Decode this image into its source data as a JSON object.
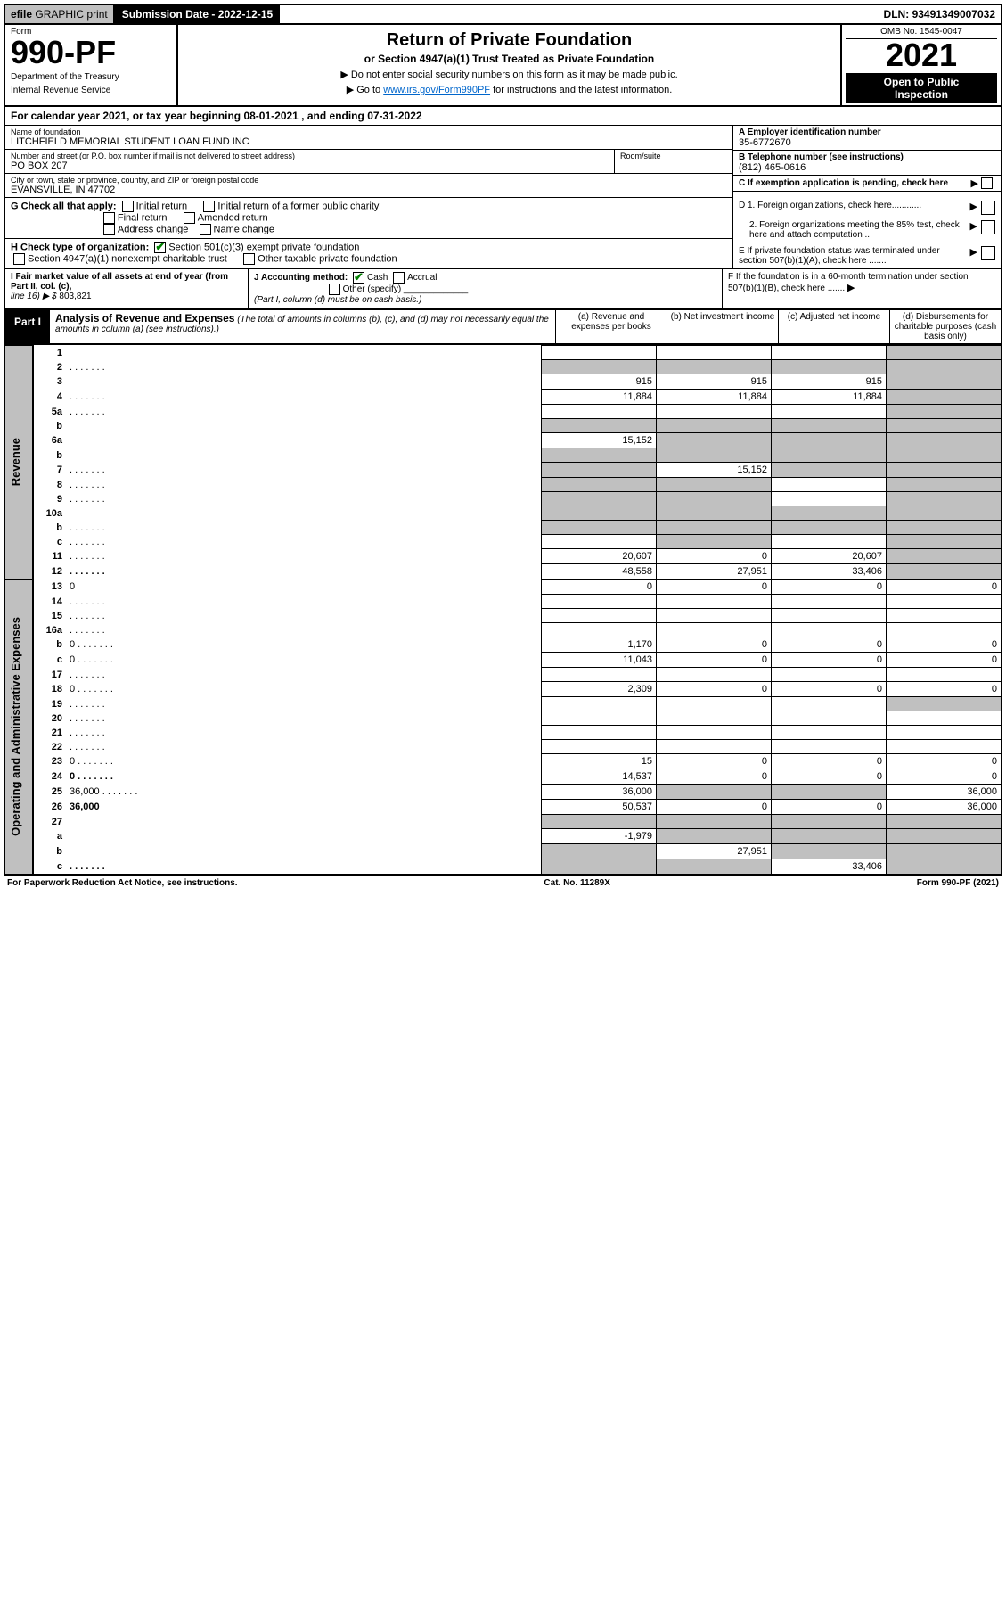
{
  "top": {
    "efile": "efile",
    "graphic": "GRAPHIC",
    "print": "print",
    "sub_label": "Submission Date",
    "sub_date": "2022-12-15",
    "dln_label": "DLN:",
    "dln": "93491349007032"
  },
  "header": {
    "form_label": "Form",
    "form_number": "990-PF",
    "dept1": "Department of the Treasury",
    "dept2": "Internal Revenue Service",
    "title": "Return of Private Foundation",
    "subtitle": "or Section 4947(a)(1) Trust Treated as Private Foundation",
    "instr1": "▶ Do not enter social security numbers on this form as it may be made public.",
    "instr2_pre": "▶ Go to ",
    "instr2_link": "www.irs.gov/Form990PF",
    "instr2_post": " for instructions and the latest information.",
    "omb": "OMB No. 1545-0047",
    "year": "2021",
    "open1": "Open to Public",
    "open2": "Inspection"
  },
  "calendar": {
    "pre": "For calendar year 2021, or tax year beginning ",
    "begin": "08-01-2021",
    "mid": " , and ending ",
    "end": "07-31-2022"
  },
  "org": {
    "name_label": "Name of foundation",
    "name": "LITCHFIELD MEMORIAL STUDENT LOAN FUND INC",
    "addr_label": "Number and street (or P.O. box number if mail is not delivered to street address)",
    "addr": "PO BOX 207",
    "room_label": "Room/suite",
    "city_label": "City or town, state or province, country, and ZIP or foreign postal code",
    "city": "EVANSVILLE, IN  47702",
    "ein_label": "A Employer identification number",
    "ein": "35-6772670",
    "tel_label": "B Telephone number (see instructions)",
    "tel": "(812) 465-0616",
    "c_label": "C If exemption application is pending, check here"
  },
  "checks": {
    "g_label": "G Check all that apply:",
    "g1": "Initial return",
    "g2": "Initial return of a former public charity",
    "g3": "Final return",
    "g4": "Amended return",
    "g5": "Address change",
    "g6": "Name change",
    "h_label": "H Check type of organization:",
    "h1": "Section 501(c)(3) exempt private foundation",
    "h2": "Section 4947(a)(1) nonexempt charitable trust",
    "h3": "Other taxable private foundation",
    "d1": "D 1. Foreign organizations, check here............",
    "d2": "2. Foreign organizations meeting the 85% test, check here and attach computation ...",
    "e": "E If private foundation status was terminated under section 507(b)(1)(A), check here .......",
    "f": "F If the foundation is in a 60-month termination under section 507(b)(1)(B), check here .......",
    "i_label": "I Fair market value of all assets at end of year (from Part II, col. (c),",
    "i_line": "line 16) ▶ $",
    "i_val": "803,821",
    "j_label": "J Accounting method:",
    "j1": "Cash",
    "j2": "Accrual",
    "j3": "Other (specify)",
    "j_note": "(Part I, column (d) must be on cash basis.)"
  },
  "part1": {
    "label": "Part I",
    "title": "Analysis of Revenue and Expenses",
    "title_note": "(The total of amounts in columns (b), (c), and (d) may not necessarily equal the amounts in column (a) (see instructions).)",
    "col_a": "(a) Revenue and expenses per books",
    "col_b": "(b) Net investment income",
    "col_c": "(c) Adjusted net income",
    "col_d": "(d) Disbursements for charitable purposes (cash basis only)"
  },
  "sides": {
    "revenue": "Revenue",
    "expenses": "Operating and Administrative Expenses"
  },
  "rows": [
    {
      "n": "1",
      "d": "",
      "a": "",
      "b": "",
      "c": "",
      "dgrey": true
    },
    {
      "n": "2",
      "d": "",
      "dots": true,
      "a": "",
      "b": "",
      "c": "",
      "bgrey": true,
      "cgrey": true,
      "dgrey": true,
      "agrey": true
    },
    {
      "n": "3",
      "d": "",
      "a": "915",
      "b": "915",
      "c": "915",
      "dgrey": true
    },
    {
      "n": "4",
      "d": "",
      "dots": true,
      "a": "11,884",
      "b": "11,884",
      "c": "11,884",
      "dgrey": true
    },
    {
      "n": "5a",
      "d": "",
      "dots": true,
      "a": "",
      "b": "",
      "c": "",
      "dgrey": true
    },
    {
      "n": "b",
      "d": "",
      "a": "",
      "b": "",
      "c": "",
      "agrey": true,
      "bgrey": true,
      "cgrey": true,
      "dgrey": true
    },
    {
      "n": "6a",
      "d": "",
      "a": "15,152",
      "b": "",
      "c": "",
      "bgrey": true,
      "cgrey": true,
      "dgrey": true
    },
    {
      "n": "b",
      "d": "",
      "a": "",
      "b": "",
      "c": "",
      "agrey": true,
      "bgrey": true,
      "cgrey": true,
      "dgrey": true
    },
    {
      "n": "7",
      "d": "",
      "dots": true,
      "a": "",
      "b": "15,152",
      "c": "",
      "agrey": true,
      "cgrey": true,
      "dgrey": true
    },
    {
      "n": "8",
      "d": "",
      "dots": true,
      "a": "",
      "b": "",
      "c": "",
      "agrey": true,
      "bgrey": true,
      "dgrey": true
    },
    {
      "n": "9",
      "d": "",
      "dots": true,
      "a": "",
      "b": "",
      "c": "",
      "agrey": true,
      "bgrey": true,
      "dgrey": true
    },
    {
      "n": "10a",
      "d": "",
      "a": "",
      "b": "",
      "c": "",
      "agrey": true,
      "bgrey": true,
      "cgrey": true,
      "dgrey": true
    },
    {
      "n": "b",
      "d": "",
      "dots": true,
      "a": "",
      "b": "",
      "c": "",
      "agrey": true,
      "bgrey": true,
      "cgrey": true,
      "dgrey": true
    },
    {
      "n": "c",
      "d": "",
      "dots": true,
      "a": "",
      "b": "",
      "c": "",
      "bgrey": true,
      "dgrey": true
    },
    {
      "n": "11",
      "d": "",
      "dots": true,
      "a": "20,607",
      "b": "0",
      "c": "20,607",
      "dgrey": true
    },
    {
      "n": "12",
      "d": "",
      "dots": true,
      "bold": true,
      "a": "48,558",
      "b": "27,951",
      "c": "33,406",
      "dgrey": true
    },
    {
      "n": "13",
      "d": "0",
      "a": "0",
      "b": "0",
      "c": "0"
    },
    {
      "n": "14",
      "d": "",
      "dots": true,
      "a": "",
      "b": "",
      "c": ""
    },
    {
      "n": "15",
      "d": "",
      "dots": true,
      "a": "",
      "b": "",
      "c": ""
    },
    {
      "n": "16a",
      "d": "",
      "dots": true,
      "a": "",
      "b": "",
      "c": ""
    },
    {
      "n": "b",
      "d": "0",
      "dots": true,
      "a": "1,170",
      "b": "0",
      "c": "0"
    },
    {
      "n": "c",
      "d": "0",
      "dots": true,
      "a": "11,043",
      "b": "0",
      "c": "0"
    },
    {
      "n": "17",
      "d": "",
      "dots": true,
      "a": "",
      "b": "",
      "c": ""
    },
    {
      "n": "18",
      "d": "0",
      "dots": true,
      "a": "2,309",
      "b": "0",
      "c": "0"
    },
    {
      "n": "19",
      "d": "",
      "dots": true,
      "a": "",
      "b": "",
      "c": "",
      "dgrey": true
    },
    {
      "n": "20",
      "d": "",
      "dots": true,
      "a": "",
      "b": "",
      "c": ""
    },
    {
      "n": "21",
      "d": "",
      "dots": true,
      "a": "",
      "b": "",
      "c": ""
    },
    {
      "n": "22",
      "d": "",
      "dots": true,
      "a": "",
      "b": "",
      "c": ""
    },
    {
      "n": "23",
      "d": "0",
      "dots": true,
      "a": "15",
      "b": "0",
      "c": "0"
    },
    {
      "n": "24",
      "d": "0",
      "dots": true,
      "bold": true,
      "a": "14,537",
      "b": "0",
      "c": "0"
    },
    {
      "n": "25",
      "d": "36,000",
      "dots": true,
      "a": "36,000",
      "b": "",
      "c": "",
      "bgrey": true,
      "cgrey": true
    },
    {
      "n": "26",
      "d": "36,000",
      "bold": true,
      "a": "50,537",
      "b": "0",
      "c": "0"
    },
    {
      "n": "27",
      "d": "",
      "a": "",
      "b": "",
      "c": "",
      "agrey": true,
      "bgrey": true,
      "cgrey": true,
      "dgrey": true
    },
    {
      "n": "a",
      "d": "",
      "bold": true,
      "a": "-1,979",
      "b": "",
      "c": "",
      "bgrey": true,
      "cgrey": true,
      "dgrey": true
    },
    {
      "n": "b",
      "d": "",
      "bold": true,
      "a": "",
      "b": "27,951",
      "c": "",
      "agrey": true,
      "cgrey": true,
      "dgrey": true
    },
    {
      "n": "c",
      "d": "",
      "dots": true,
      "bold": true,
      "a": "",
      "b": "",
      "c": "33,406",
      "agrey": true,
      "bgrey": true,
      "dgrey": true
    }
  ],
  "footer": {
    "l": "For Paperwork Reduction Act Notice, see instructions.",
    "c": "Cat. No. 11289X",
    "r": "Form 990-PF (2021)"
  }
}
